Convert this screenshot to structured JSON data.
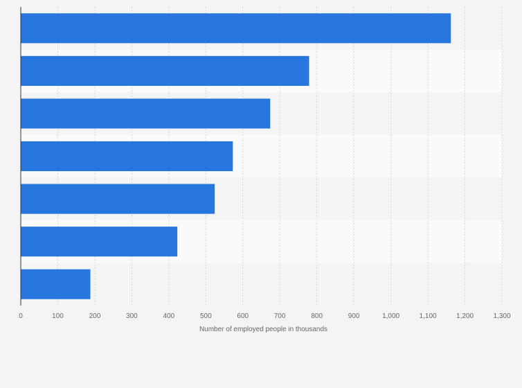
{
  "chart_data": {
    "type": "bar",
    "orientation": "horizontal",
    "categories": [
      "",
      "",
      "",
      "",
      "",
      "",
      ""
    ],
    "values": [
      1162,
      779,
      674,
      573,
      524,
      423,
      188
    ],
    "title": "",
    "xlabel": "Number of employed people in thousands",
    "ylabel": "",
    "xlim": [
      0,
      1300
    ],
    "x_ticks": [
      0,
      100,
      200,
      300,
      400,
      500,
      600,
      700,
      800,
      900,
      1000,
      1100,
      1200,
      1300
    ],
    "x_tick_labels": [
      "0",
      "100",
      "200",
      "300",
      "400",
      "500",
      "600",
      "700",
      "800",
      "900",
      "1,000",
      "1,100",
      "1,200",
      "1,300"
    ],
    "grid": true,
    "legend": "none",
    "colors": {
      "bar": "#2776de",
      "background": "#f4f4f4",
      "band_light": "#fafafa",
      "band_dark": "#f4f4f4",
      "grid": "#d9d9d9",
      "axis": "#333333",
      "text": "#666666"
    }
  }
}
